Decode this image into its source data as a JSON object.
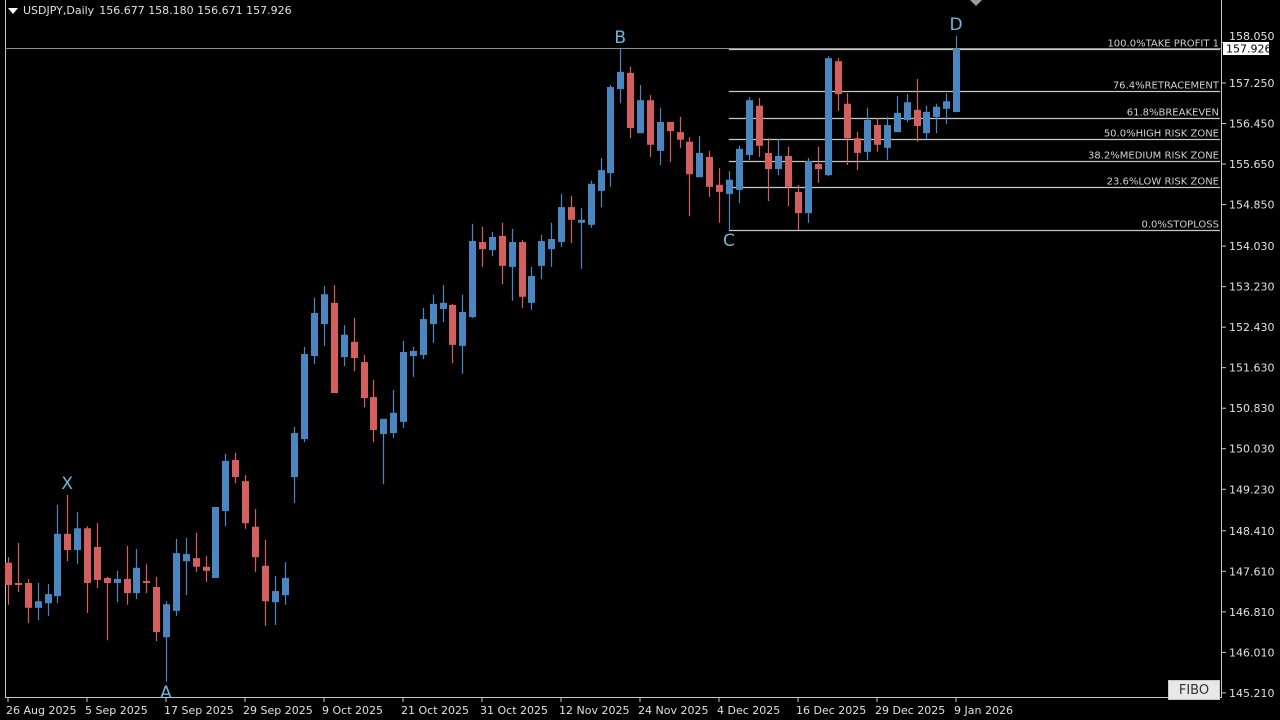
{
  "header": {
    "symbol_timeframe": "USDJPY,Daily",
    "ohlc": "156.677 158.180 156.671 157.926"
  },
  "current_price_label": "157.926",
  "fibo_button": "FIBO",
  "colors": {
    "bull": "#4a86c0",
    "bear": "#d45f5f",
    "background": "#000000",
    "fib_line": "#c8c8c8",
    "axis_text": "#e0e0e0",
    "pattern_label": "#6fb7d8"
  },
  "chart_data": {
    "type": "candlestick",
    "symbol": "USDJPY",
    "timeframe": "Daily",
    "ylim": [
      145.1,
      158.3
    ],
    "y_ticks": [
      "158.050",
      "157.250",
      "156.450",
      "155.650",
      "154.850",
      "154.030",
      "153.230",
      "152.430",
      "151.630",
      "150.830",
      "150.030",
      "149.230",
      "148.410",
      "147.610",
      "146.810",
      "146.010",
      "145.210"
    ],
    "x_labels": [
      {
        "label": "26 Aug 2025",
        "bar": 0
      },
      {
        "label": "5 Sep 2025",
        "bar": 8
      },
      {
        "label": "17 Sep 2025",
        "bar": 16
      },
      {
        "label": "29 Sep 2025",
        "bar": 24
      },
      {
        "label": "9 Oct 2025",
        "bar": 32
      },
      {
        "label": "21 Oct 2025",
        "bar": 40
      },
      {
        "label": "31 Oct 2025",
        "bar": 48
      },
      {
        "label": "12 Nov 2025",
        "bar": 56
      },
      {
        "label": "24 Nov 2025",
        "bar": 64
      },
      {
        "label": "4 Dec 2025",
        "bar": 72
      },
      {
        "label": "16 Dec 2025",
        "bar": 80
      },
      {
        "label": "29 Dec 2025",
        "bar": 88
      },
      {
        "label": "9 Jan 2026",
        "bar": 96
      }
    ],
    "ohlc_columns": [
      "open",
      "high",
      "low",
      "close"
    ],
    "candles": [
      [
        147.78,
        147.89,
        146.95,
        147.34
      ],
      [
        147.38,
        148.17,
        147.2,
        147.34
      ],
      [
        147.38,
        147.46,
        146.59,
        146.89
      ],
      [
        146.89,
        147.38,
        146.65,
        147.02
      ],
      [
        146.98,
        147.36,
        146.73,
        147.16
      ],
      [
        147.12,
        148.92,
        146.98,
        148.35
      ],
      [
        148.35,
        149.12,
        147.81,
        148.03
      ],
      [
        148.03,
        148.78,
        147.75,
        148.46
      ],
      [
        148.46,
        148.5,
        146.79,
        147.38
      ],
      [
        148.09,
        148.56,
        147.28,
        147.44
      ],
      [
        147.48,
        147.5,
        146.25,
        147.38
      ],
      [
        147.38,
        147.62,
        147.0,
        147.46
      ],
      [
        147.46,
        148.11,
        146.95,
        147.18
      ],
      [
        147.18,
        148.05,
        147.06,
        147.68
      ],
      [
        147.42,
        147.75,
        147.18,
        147.38
      ],
      [
        147.3,
        147.5,
        146.23,
        146.41
      ],
      [
        146.31,
        147.02,
        145.43,
        146.96
      ],
      [
        146.83,
        148.25,
        146.73,
        147.97
      ],
      [
        147.81,
        148.27,
        147.14,
        147.95
      ],
      [
        147.87,
        148.37,
        147.6,
        147.7
      ],
      [
        147.7,
        147.91,
        147.4,
        147.62
      ],
      [
        147.48,
        148.88,
        147.48,
        148.88
      ],
      [
        148.8,
        149.93,
        148.5,
        149.79
      ],
      [
        149.81,
        149.95,
        149.35,
        149.47
      ],
      [
        149.39,
        149.51,
        148.45,
        148.56
      ],
      [
        148.49,
        148.84,
        147.6,
        147.89
      ],
      [
        147.72,
        148.23,
        146.53,
        147.02
      ],
      [
        147.0,
        147.52,
        146.55,
        147.22
      ],
      [
        147.14,
        147.79,
        146.95,
        147.48
      ],
      [
        149.47,
        150.46,
        148.96,
        150.34
      ],
      [
        150.22,
        152.04,
        150.16,
        151.9
      ],
      [
        151.86,
        153.01,
        151.7,
        152.71
      ],
      [
        152.49,
        153.24,
        152.06,
        153.08
      ],
      [
        152.91,
        153.26,
        151.13,
        151.13
      ],
      [
        151.84,
        152.47,
        151.66,
        152.28
      ],
      [
        152.14,
        152.61,
        151.56,
        151.82
      ],
      [
        151.74,
        151.88,
        150.85,
        151.03
      ],
      [
        151.05,
        151.39,
        150.16,
        150.4
      ],
      [
        150.32,
        150.62,
        149.33,
        150.62
      ],
      [
        150.34,
        151.19,
        150.24,
        150.74
      ],
      [
        150.56,
        152.16,
        150.44,
        151.94
      ],
      [
        151.86,
        152.04,
        151.45,
        151.96
      ],
      [
        151.88,
        152.81,
        151.8,
        152.59
      ],
      [
        152.49,
        153.07,
        152.12,
        152.89
      ],
      [
        152.79,
        153.26,
        152.53,
        152.91
      ],
      [
        152.87,
        152.89,
        151.72,
        152.08
      ],
      [
        152.06,
        153.07,
        151.51,
        152.73
      ],
      [
        152.63,
        154.47,
        152.61,
        154.13
      ],
      [
        154.11,
        154.41,
        153.62,
        153.97
      ],
      [
        153.95,
        154.31,
        153.83,
        154.21
      ],
      [
        154.23,
        154.49,
        153.28,
        153.64
      ],
      [
        153.62,
        154.37,
        152.95,
        154.11
      ],
      [
        154.11,
        154.15,
        152.81,
        153.03
      ],
      [
        152.91,
        153.62,
        152.77,
        153.44
      ],
      [
        153.64,
        154.25,
        153.38,
        154.13
      ],
      [
        153.97,
        154.49,
        153.62,
        154.17
      ],
      [
        154.11,
        155.06,
        154.01,
        154.8
      ],
      [
        154.8,
        155.02,
        154.09,
        154.55
      ],
      [
        154.49,
        154.78,
        153.58,
        154.55
      ],
      [
        154.45,
        155.32,
        154.39,
        155.26
      ],
      [
        155.12,
        155.77,
        154.8,
        155.53
      ],
      [
        155.47,
        157.21,
        155.2,
        157.17
      ],
      [
        157.13,
        157.92,
        156.85,
        157.47
      ],
      [
        157.45,
        157.57,
        156.16,
        156.36
      ],
      [
        156.26,
        157.21,
        156.26,
        156.91
      ],
      [
        156.91,
        157.01,
        155.79,
        156.03
      ],
      [
        155.91,
        156.76,
        155.63,
        156.48
      ],
      [
        156.48,
        156.48,
        155.69,
        156.3
      ],
      [
        156.28,
        156.58,
        155.97,
        156.13
      ],
      [
        156.09,
        156.18,
        154.62,
        155.45
      ],
      [
        155.39,
        156.2,
        155.39,
        155.87
      ],
      [
        155.79,
        155.91,
        155.0,
        155.2
      ],
      [
        155.24,
        155.57,
        154.49,
        155.1
      ],
      [
        155.06,
        155.51,
        154.35,
        155.34
      ],
      [
        155.14,
        156.01,
        154.88,
        155.95
      ],
      [
        155.83,
        156.97,
        155.73,
        156.91
      ],
      [
        156.8,
        156.95,
        155.79,
        156.01
      ],
      [
        155.87,
        156.16,
        154.92,
        155.55
      ],
      [
        155.55,
        156.14,
        155.43,
        155.81
      ],
      [
        155.81,
        155.99,
        154.82,
        155.2
      ],
      [
        155.1,
        155.24,
        154.35,
        154.68
      ],
      [
        154.68,
        155.77,
        154.49,
        155.71
      ],
      [
        155.65,
        155.99,
        155.28,
        155.55
      ],
      [
        155.43,
        157.78,
        155.41,
        157.74
      ],
      [
        157.68,
        157.74,
        156.7,
        157.03
      ],
      [
        156.84,
        157.05,
        155.63,
        156.16
      ],
      [
        156.16,
        156.28,
        155.53,
        155.87
      ],
      [
        155.89,
        156.76,
        155.73,
        156.52
      ],
      [
        156.42,
        156.56,
        155.89,
        156.03
      ],
      [
        155.97,
        156.58,
        155.73,
        156.42
      ],
      [
        156.28,
        156.99,
        156.28,
        156.66
      ],
      [
        156.52,
        157.03,
        156.48,
        156.87
      ],
      [
        156.72,
        157.33,
        156.09,
        156.4
      ],
      [
        156.26,
        156.8,
        156.14,
        156.68
      ],
      [
        156.58,
        156.84,
        156.26,
        156.78
      ],
      [
        156.74,
        157.05,
        156.44,
        156.89
      ],
      [
        156.677,
        158.18,
        156.671,
        157.926
      ]
    ],
    "bid_line": 157.926,
    "fibonacci": {
      "start_bar": 73,
      "price_0": 154.35,
      "price_100": 157.926,
      "levels": [
        {
          "ratio": 1.0,
          "label": "100.0%TAKE PROFIT 1"
        },
        {
          "ratio": 0.764,
          "label": "76.4%RETRACEMENT"
        },
        {
          "ratio": 0.618,
          "label": "61.8%BREAKEVEN"
        },
        {
          "ratio": 0.5,
          "label": "50.0%HIGH RISK ZONE"
        },
        {
          "ratio": 0.382,
          "label": "38.2%MEDIUM RISK ZONE"
        },
        {
          "ratio": 0.236,
          "label": "23.6%LOW RISK ZONE"
        },
        {
          "ratio": 0.0,
          "label": "0.0%STOPLOSS"
        }
      ]
    },
    "pattern_points": [
      {
        "label": "X",
        "bar": 6,
        "price": 149.12,
        "pos": "above"
      },
      {
        "label": "A",
        "bar": 16,
        "price": 145.43,
        "pos": "below"
      },
      {
        "label": "B",
        "bar": 62,
        "price": 157.92,
        "pos": "above"
      },
      {
        "label": "C",
        "bar": 73,
        "price": 154.35,
        "pos": "below"
      },
      {
        "label": "D",
        "bar": 96,
        "price": 158.18,
        "pos": "above"
      }
    ]
  }
}
